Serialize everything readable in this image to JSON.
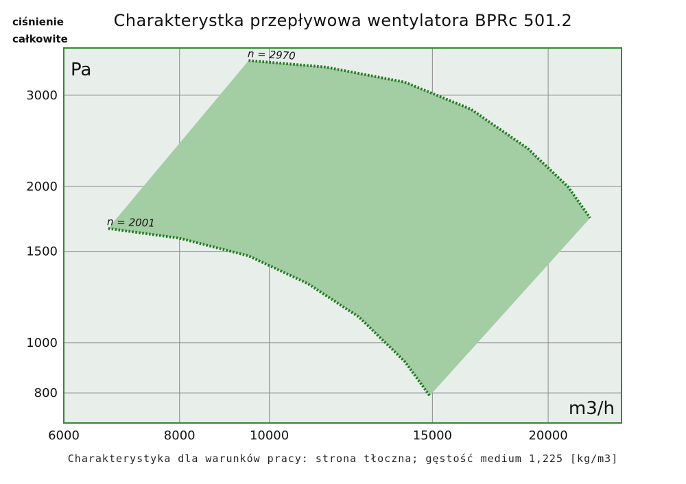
{
  "header": {
    "corner_label_line1": "ciśnienie",
    "corner_label_line2": "całkowite",
    "title": "Charakterystka przepływowa wentylatora BPRc 501.2"
  },
  "caption": "Charakterystyka dla warunków pracy: strona tłoczna; gęstość medium 1,225 [kg/m3]",
  "colors": {
    "plot_background": "#e8eeea",
    "plot_border": "#2e8b2e",
    "grid": "#8a8a8a",
    "region_fill": "#a3cda3",
    "curve": "#1f7a1f"
  },
  "chart_data": {
    "type": "area",
    "x_scale": "log",
    "y_scale": "log",
    "xlim": [
      6000,
      24000
    ],
    "ylim": [
      700,
      3700
    ],
    "x_unit": "m3/h",
    "y_unit": "Pa",
    "x_ticks": [
      6000,
      8000,
      10000,
      15000,
      20000
    ],
    "y_ticks": [
      800,
      1000,
      1500,
      2000,
      3000
    ],
    "grid": true,
    "series": [
      {
        "name": "n = 2001",
        "x": [
          6700,
          8000,
          9500,
          11000,
          12500,
          14000,
          14900
        ],
        "y": [
          1660,
          1590,
          1470,
          1300,
          1120,
          920,
          790
        ]
      },
      {
        "name": "n = 2970",
        "x": [
          9500,
          11500,
          14000,
          16500,
          19000,
          21000,
          22200
        ],
        "y": [
          3500,
          3400,
          3180,
          2820,
          2370,
          2000,
          1740
        ]
      }
    ],
    "region_note": "operating area bounded by both curves"
  }
}
